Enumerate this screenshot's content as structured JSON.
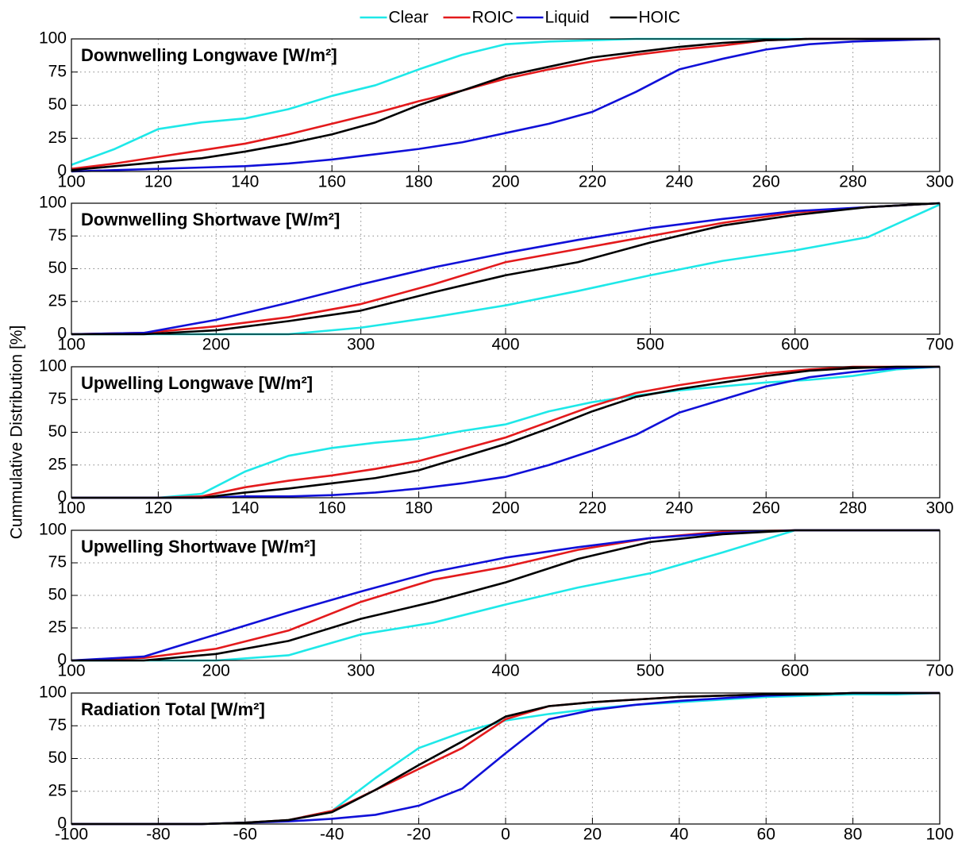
{
  "chart_data": [
    {
      "type": "line",
      "title": "Downwelling Longwave [W/m²]",
      "legend": "top",
      "grid": true,
      "x": [
        100,
        110,
        120,
        130,
        140,
        150,
        160,
        170,
        180,
        190,
        200,
        210,
        220,
        230,
        240,
        250,
        260,
        270,
        280,
        290,
        300
      ],
      "xlim": [
        100,
        300
      ],
      "xticks": [
        100,
        120,
        140,
        160,
        180,
        200,
        220,
        240,
        260,
        280,
        300
      ],
      "ylim": [
        0,
        100
      ],
      "yticks": [
        0,
        25,
        50,
        75,
        100
      ],
      "series": [
        {
          "name": "Clear",
          "color": "#1ee8e8",
          "values": [
            5,
            17,
            32,
            37,
            40,
            47,
            57,
            65,
            77,
            88,
            96,
            98,
            99,
            100,
            100,
            100,
            100,
            100,
            100,
            100,
            100
          ]
        },
        {
          "name": "ROIC",
          "color": "#e31a1c",
          "values": [
            2,
            6,
            11,
            16,
            21,
            28,
            36,
            44,
            53,
            61,
            70,
            77,
            83,
            88,
            92,
            95,
            99,
            100,
            100,
            100,
            100
          ]
        },
        {
          "name": "Liquid",
          "color": "#1010d8",
          "values": [
            0,
            1,
            2,
            3,
            4,
            6,
            9,
            13,
            17,
            22,
            29,
            36,
            45,
            60,
            77,
            85,
            92,
            96,
            98,
            99,
            100
          ]
        },
        {
          "name": "HOIC",
          "color": "#000000",
          "values": [
            1,
            4,
            7,
            10,
            15,
            21,
            28,
            37,
            50,
            61,
            72,
            79,
            86,
            90,
            94,
            97,
            99,
            100,
            100,
            100,
            100
          ]
        }
      ]
    },
    {
      "type": "line",
      "title": "Downwelling Shortwave [W/m²]",
      "grid": true,
      "x": [
        100,
        150,
        200,
        250,
        300,
        350,
        400,
        450,
        500,
        550,
        600,
        650,
        700
      ],
      "xlim": [
        100,
        700
      ],
      "xticks": [
        100,
        200,
        300,
        400,
        500,
        600,
        700
      ],
      "ylim": [
        0,
        100
      ],
      "yticks": [
        0,
        25,
        50,
        75,
        100
      ],
      "series": [
        {
          "name": "Clear",
          "color": "#1ee8e8",
          "values": [
            0,
            0,
            0,
            0,
            5,
            13,
            22,
            33,
            45,
            56,
            64,
            74,
            99
          ]
        },
        {
          "name": "ROIC",
          "color": "#e31a1c",
          "values": [
            0,
            1,
            6,
            13,
            23,
            38,
            55,
            65,
            75,
            85,
            93,
            97,
            100
          ]
        },
        {
          "name": "Liquid",
          "color": "#1010d8",
          "values": [
            0,
            1,
            11,
            24,
            38,
            51,
            62,
            72,
            81,
            88,
            94,
            97,
            100
          ]
        },
        {
          "name": "HOIC",
          "color": "#000000",
          "values": [
            0,
            0,
            3,
            10,
            18,
            32,
            45,
            55,
            70,
            83,
            91,
            97,
            100
          ]
        }
      ]
    },
    {
      "type": "line",
      "title": "Upwelling Longwave [W/m²]",
      "ylabel": "Cummulative Distribution [%]",
      "grid": true,
      "x": [
        100,
        110,
        120,
        130,
        140,
        150,
        160,
        170,
        180,
        190,
        200,
        210,
        220,
        230,
        240,
        250,
        260,
        270,
        280,
        290,
        300
      ],
      "xlim": [
        100,
        300
      ],
      "xticks": [
        100,
        120,
        140,
        160,
        180,
        200,
        220,
        240,
        260,
        280,
        300
      ],
      "ylim": [
        0,
        100
      ],
      "yticks": [
        0,
        25,
        50,
        75,
        100
      ],
      "series": [
        {
          "name": "Clear",
          "color": "#1ee8e8",
          "values": [
            0,
            0,
            0,
            3,
            20,
            32,
            38,
            42,
            45,
            51,
            56,
            66,
            73,
            78,
            82,
            85,
            88,
            90,
            93,
            98,
            100
          ]
        },
        {
          "name": "ROIC",
          "color": "#e31a1c",
          "values": [
            0,
            0,
            0,
            1,
            8,
            13,
            17,
            22,
            28,
            37,
            46,
            58,
            70,
            80,
            86,
            91,
            95,
            98,
            100,
            100,
            100
          ]
        },
        {
          "name": "Liquid",
          "color": "#1010d8",
          "values": [
            0,
            0,
            0,
            0,
            1,
            1,
            2,
            4,
            7,
            11,
            16,
            25,
            36,
            48,
            65,
            75,
            85,
            92,
            96,
            99,
            100
          ]
        },
        {
          "name": "HOIC",
          "color": "#000000",
          "values": [
            0,
            0,
            0,
            0,
            4,
            7,
            11,
            15,
            21,
            31,
            41,
            53,
            66,
            77,
            83,
            88,
            93,
            97,
            99,
            100,
            100
          ]
        }
      ]
    },
    {
      "type": "line",
      "title": "Upwelling Shortwave [W/m²]",
      "grid": true,
      "x": [
        100,
        150,
        200,
        250,
        300,
        350,
        400,
        450,
        500,
        550,
        600,
        650,
        700
      ],
      "xlim": [
        100,
        700
      ],
      "xticks": [
        100,
        200,
        300,
        400,
        500,
        600,
        700
      ],
      "ylim": [
        0,
        100
      ],
      "yticks": [
        0,
        25,
        50,
        75,
        100
      ],
      "series": [
        {
          "name": "Clear",
          "color": "#1ee8e8",
          "values": [
            0,
            0,
            0,
            4,
            20,
            29,
            43,
            56,
            67,
            83,
            100,
            100,
            100
          ]
        },
        {
          "name": "ROIC",
          "color": "#e31a1c",
          "values": [
            0,
            2,
            9,
            23,
            45,
            62,
            72,
            85,
            94,
            99,
            100,
            100,
            100
          ]
        },
        {
          "name": "Liquid",
          "color": "#1010d8",
          "values": [
            0,
            3,
            20,
            37,
            53,
            68,
            79,
            87,
            94,
            98,
            100,
            100,
            100
          ]
        },
        {
          "name": "HOIC",
          "color": "#000000",
          "values": [
            0,
            0,
            5,
            15,
            32,
            45,
            60,
            78,
            91,
            97,
            100,
            100,
            100
          ]
        }
      ]
    },
    {
      "type": "line",
      "title": "Radiation Total [W/m²]",
      "grid": true,
      "x": [
        -100,
        -90,
        -80,
        -70,
        -60,
        -50,
        -40,
        -30,
        -20,
        -10,
        0,
        10,
        20,
        30,
        40,
        50,
        60,
        70,
        80,
        90,
        100
      ],
      "xlim": [
        -100,
        100
      ],
      "xticks": [
        -100,
        -80,
        -60,
        -40,
        -20,
        0,
        20,
        40,
        60,
        80,
        100
      ],
      "ylim": [
        0,
        100
      ],
      "yticks": [
        0,
        25,
        50,
        75,
        100
      ],
      "series": [
        {
          "name": "Clear",
          "color": "#1ee8e8",
          "values": [
            0,
            0,
            0,
            0,
            1,
            3,
            10,
            35,
            58,
            70,
            79,
            84,
            88,
            91,
            93,
            95,
            97,
            98,
            99,
            99,
            100
          ]
        },
        {
          "name": "ROIC",
          "color": "#e31a1c",
          "values": [
            0,
            0,
            0,
            0,
            1,
            3,
            10,
            26,
            42,
            58,
            80,
            90,
            93,
            95,
            97,
            98,
            99,
            99,
            100,
            100,
            100
          ]
        },
        {
          "name": "Liquid",
          "color": "#1010d8",
          "values": [
            0,
            0,
            0,
            0,
            1,
            2,
            4,
            7,
            14,
            27,
            54,
            80,
            87,
            91,
            94,
            96,
            98,
            99,
            100,
            100,
            100
          ]
        },
        {
          "name": "HOIC",
          "color": "#000000",
          "values": [
            0,
            0,
            0,
            0,
            1,
            3,
            9,
            26,
            45,
            63,
            82,
            90,
            93,
            95,
            97,
            98,
            99,
            99,
            100,
            100,
            100
          ]
        }
      ]
    }
  ]
}
